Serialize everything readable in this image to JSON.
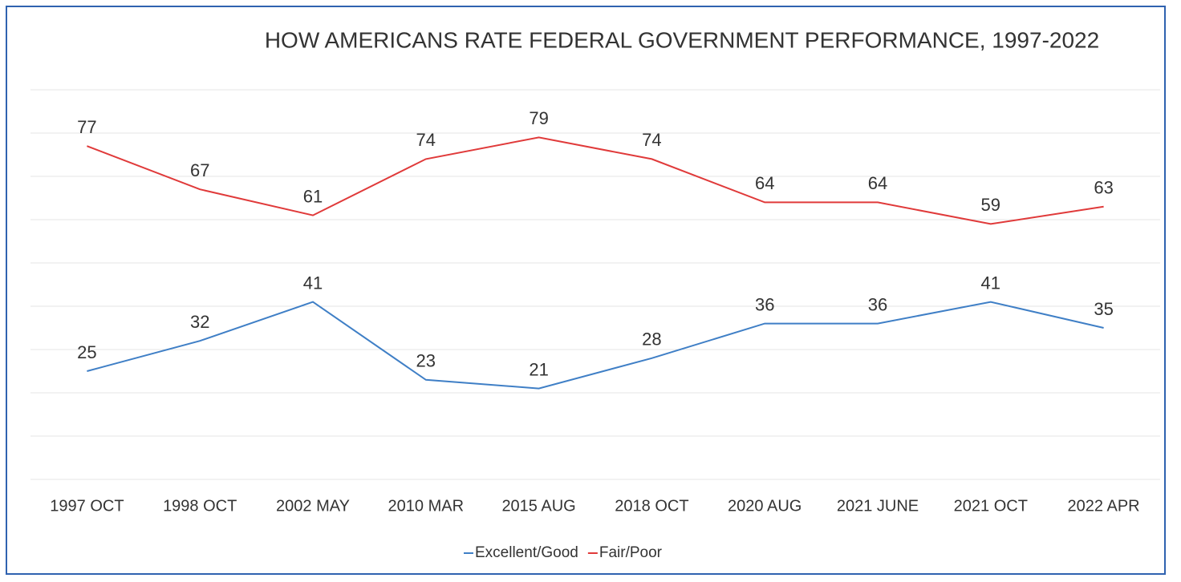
{
  "chart_data": {
    "type": "line",
    "title": "HOW AMERICANS RATE FEDERAL GOVERNMENT PERFORMANCE, 1997-2022",
    "categories": [
      "1997 OCT",
      "1998 OCT",
      "2002 MAY",
      "2010 MAR",
      "2015 AUG",
      "2018 OCT",
      "2020 AUG",
      "2021 JUNE",
      "2021 OCT",
      "2022 APR"
    ],
    "series": [
      {
        "name": "Excellent/Good",
        "color": "#3f7fc6",
        "values": [
          25,
          32,
          41,
          23,
          21,
          28,
          36,
          36,
          41,
          35
        ]
      },
      {
        "name": "Fair/Poor",
        "color": "#e03a3a",
        "values": [
          77,
          67,
          61,
          74,
          79,
          74,
          64,
          64,
          59,
          63
        ]
      }
    ],
    "ylim": [
      0,
      90
    ],
    "yticks": [
      0,
      10,
      20,
      30,
      40,
      50,
      60,
      70,
      80,
      90
    ],
    "grid": true,
    "legend": "bottom"
  }
}
